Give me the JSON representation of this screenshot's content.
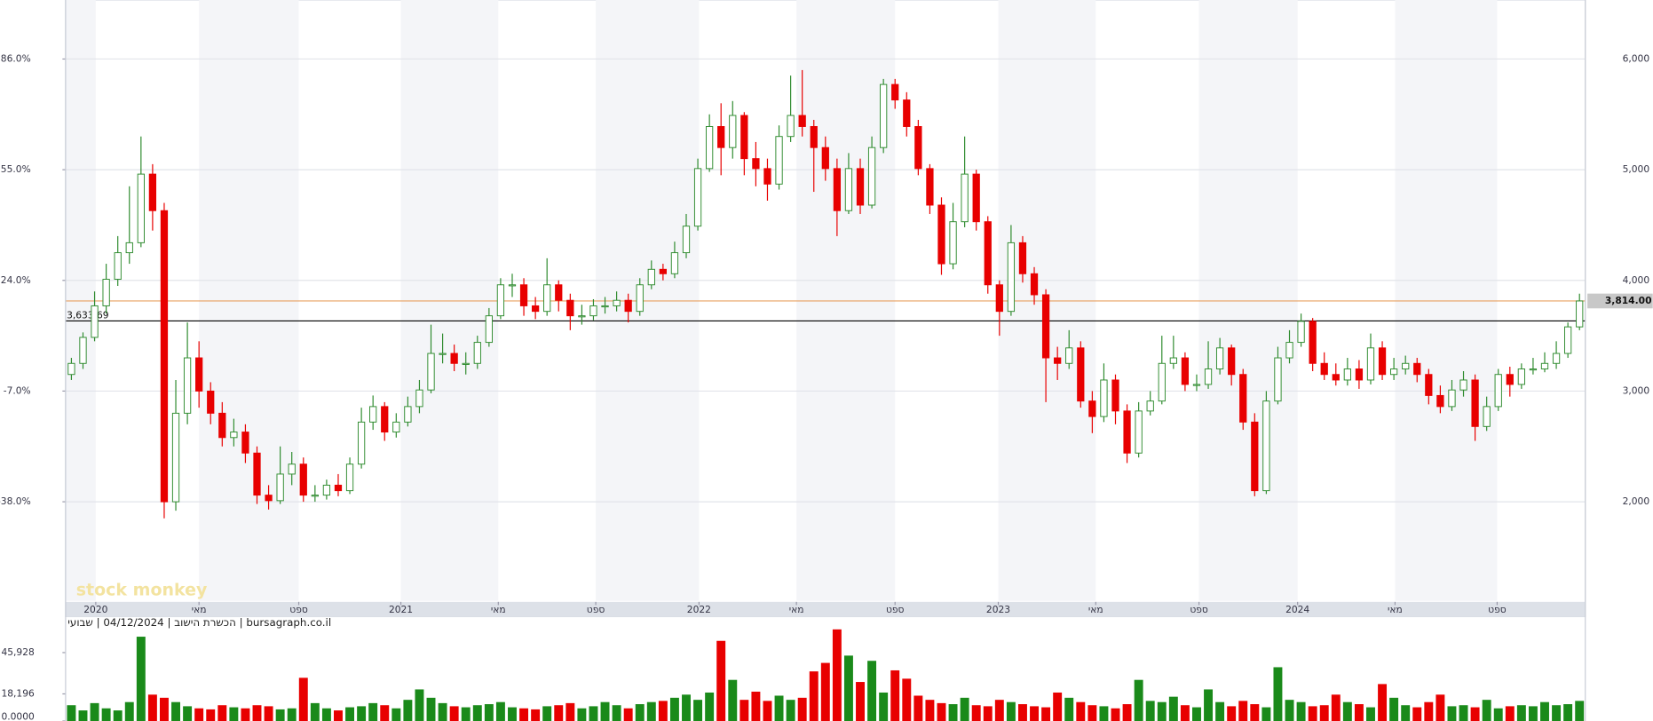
{
  "chart_data": [
    {
      "type": "candlestick",
      "watermark": "stock monkey",
      "up_color": "#2e8b2e",
      "down_color": "#e80000",
      "xlim": [
        -0.5,
        130.5
      ],
      "xticks": [
        {
          "value": 2.1,
          "label": "2020"
        },
        {
          "value": 11.0,
          "label": "מאי"
        },
        {
          "value": 19.6,
          "label": "ספט"
        },
        {
          "value": 28.4,
          "label": "2021"
        },
        {
          "value": 36.8,
          "label": "מאי"
        },
        {
          "value": 45.2,
          "label": "ספט"
        },
        {
          "value": 54.1,
          "label": "2022"
        },
        {
          "value": 62.5,
          "label": "מאי"
        },
        {
          "value": 71.0,
          "label": "ספט"
        },
        {
          "value": 79.9,
          "label": "2023"
        },
        {
          "value": 88.3,
          "label": "מאי"
        },
        {
          "value": 97.2,
          "label": "ספט"
        },
        {
          "value": 105.7,
          "label": "2024"
        },
        {
          "value": 114.1,
          "label": "מאי"
        },
        {
          "value": 122.9,
          "label": "ספט"
        }
      ],
      "ylim": [
        1105,
        6533
      ],
      "yticks": [
        {
          "value": 2000,
          "label": "2,000"
        },
        {
          "value": 3000,
          "label": "3,000"
        },
        {
          "value": 4000,
          "label": "4,000"
        },
        {
          "value": 5000,
          "label": "5,000"
        },
        {
          "value": 6000,
          "label": "6,000"
        }
      ],
      "y2lim": [
        -65.75,
        102.53
      ],
      "y2ticks": [
        {
          "value": -38,
          "label": "-38.0%"
        },
        {
          "value": -7,
          "label": "-7.0%"
        },
        {
          "value": 24,
          "label": "24.0%"
        },
        {
          "value": 55,
          "label": "55.0%"
        },
        {
          "value": 86,
          "label": "86.0%"
        }
      ],
      "grid": true,
      "reference_lines": [
        {
          "value": 3633.69,
          "label": "3,633.69",
          "color": "#000000",
          "label_position": "left"
        },
        {
          "value": 3814,
          "label": "3,814.00",
          "color": "#e8a060",
          "label_position": "right"
        }
      ],
      "opens": [
        3150,
        3250,
        3485,
        3770,
        4010,
        4250,
        4340,
        4960,
        4630,
        2000,
        2800,
        3300,
        3000,
        2800,
        2580,
        2630,
        2440,
        2060,
        2010,
        2250,
        2340,
        2060,
        2060,
        2150,
        2100,
        2340,
        2720,
        2860,
        2630,
        2720,
        2860,
        3010,
        3340,
        3340,
        3250,
        3250,
        3440,
        3680,
        3960,
        3960,
        3770,
        3720,
        3960,
        3820,
        3680,
        3680,
        3770,
        3770,
        3820,
        3720,
        3960,
        4100,
        4060,
        4250,
        4490,
        5010,
        5390,
        5200,
        5490,
        5100,
        5010,
        4870,
        5300,
        5490,
        5390,
        5200,
        5010,
        4630,
        5010,
        4680,
        5200,
        5770,
        5630,
        5390,
        5010,
        4680,
        4150,
        4530,
        4960,
        4530,
        3960,
        3720,
        4340,
        4060,
        3870,
        3300,
        3250,
        3390,
        2910,
        2770,
        3100,
        2820,
        2440,
        2820,
        2910,
        3250,
        3300,
        3060,
        3060,
        3200,
        3390,
        3150,
        2720,
        2100,
        2910,
        3300,
        3440,
        3630,
        3250,
        3150,
        3100,
        3200,
        3100,
        3390,
        3150,
        3200,
        3250,
        3150,
        2960,
        2860,
        3010,
        3100,
        2680,
        2860,
        3150,
        3060,
        3200,
        3200,
        3250,
        3340,
        3580
      ],
      "highs": [
        3300,
        3530,
        3900,
        4150,
        4400,
        4850,
        5300,
        5050,
        4700,
        3100,
        3620,
        3450,
        3080,
        2900,
        2750,
        2700,
        2500,
        2150,
        2500,
        2450,
        2400,
        2150,
        2200,
        2250,
        2400,
        2850,
        2960,
        2900,
        2800,
        2950,
        3100,
        3600,
        3520,
        3420,
        3350,
        3500,
        3750,
        4020,
        4060,
        4020,
        3850,
        4200,
        4000,
        3880,
        3780,
        3830,
        3850,
        3900,
        3880,
        4020,
        4180,
        4150,
        4350,
        4600,
        5100,
        5500,
        5600,
        5620,
        5520,
        5250,
        5100,
        5400,
        5850,
        5900,
        5450,
        5300,
        5100,
        5150,
        5100,
        5300,
        5820,
        5820,
        5700,
        5450,
        5050,
        4750,
        4700,
        5300,
        5000,
        4580,
        4000,
        4500,
        4400,
        4120,
        3920,
        3400,
        3550,
        3450,
        3000,
        3250,
        3150,
        2880,
        2900,
        3000,
        3500,
        3500,
        3350,
        3150,
        3450,
        3480,
        3420,
        3200,
        2800,
        3000,
        3400,
        3550,
        3700,
        3660,
        3350,
        3250,
        3300,
        3280,
        3520,
        3450,
        3300,
        3320,
        3300,
        3200,
        3050,
        3100,
        3180,
        3150,
        2950,
        3200,
        3220,
        3250,
        3300,
        3350,
        3450,
        3620,
        3880
      ],
      "lows": [
        3100,
        3200,
        3450,
        3700,
        3950,
        4150,
        4300,
        4450,
        1850,
        1920,
        2700,
        2850,
        2700,
        2500,
        2500,
        2350,
        1980,
        1930,
        1980,
        2150,
        2000,
        2000,
        2020,
        2050,
        2070,
        2300,
        2650,
        2550,
        2580,
        2680,
        2800,
        2980,
        3250,
        3180,
        3150,
        3200,
        3400,
        3650,
        3850,
        3680,
        3650,
        3680,
        3720,
        3550,
        3600,
        3640,
        3700,
        3720,
        3620,
        3680,
        3920,
        4000,
        4020,
        4200,
        4450,
        4980,
        4950,
        5100,
        4950,
        4850,
        4720,
        4820,
        5250,
        5300,
        4800,
        4900,
        4400,
        4600,
        4600,
        4650,
        5150,
        5550,
        5300,
        4950,
        4600,
        4050,
        4100,
        4480,
        4450,
        3880,
        3500,
        3680,
        3980,
        3780,
        2900,
        3100,
        3200,
        2850,
        2620,
        2720,
        2700,
        2350,
        2400,
        2780,
        2880,
        3200,
        3000,
        3000,
        3020,
        3150,
        3050,
        2650,
        2050,
        2070,
        2880,
        3250,
        3400,
        3180,
        3100,
        3050,
        3050,
        3020,
        3060,
        3100,
        3100,
        3150,
        3080,
        2880,
        2800,
        2820,
        2950,
        2550,
        2640,
        2820,
        2950,
        3020,
        3150,
        3170,
        3200,
        3300,
        3550
      ],
      "closes": [
        3250,
        3485,
        3770,
        4010,
        4250,
        4340,
        4960,
        4630,
        2000,
        2800,
        3300,
        3000,
        2800,
        2580,
        2630,
        2440,
        2060,
        2010,
        2250,
        2340,
        2060,
        2060,
        2150,
        2100,
        2340,
        2720,
        2860,
        2630,
        2720,
        2860,
        3010,
        3340,
        3340,
        3250,
        3250,
        3440,
        3680,
        3960,
        3960,
        3770,
        3720,
        3960,
        3820,
        3680,
        3680,
        3770,
        3770,
        3820,
        3720,
        3960,
        4100,
        4060,
        4250,
        4490,
        5010,
        5390,
        5200,
        5490,
        5100,
        5010,
        4870,
        5300,
        5490,
        5390,
        5200,
        5010,
        4630,
        5010,
        4680,
        5200,
        5770,
        5630,
        5390,
        5010,
        4680,
        4150,
        4530,
        4960,
        4530,
        3960,
        3720,
        4340,
        4060,
        3870,
        3300,
        3250,
        3390,
        2910,
        2770,
        3100,
        2820,
        2440,
        2820,
        2910,
        3250,
        3300,
        3060,
        3060,
        3200,
        3390,
        3150,
        2720,
        2100,
        2910,
        3300,
        3440,
        3630,
        3250,
        3150,
        3100,
        3200,
        3100,
        3390,
        3150,
        3200,
        3250,
        3150,
        2960,
        2860,
        3010,
        3100,
        2680,
        2860,
        3150,
        3060,
        3200,
        3200,
        3250,
        3340,
        3580,
        3814
      ]
    },
    {
      "type": "bar",
      "subtitle": "bursagraph.co.il | הכשרת הישוב | 04/12/2024 | שבועי",
      "up_color": "#1a8a1a",
      "down_color": "#e80000",
      "ylim": [
        0,
        69350
      ],
      "yticks": [
        {
          "value": 0,
          "label": "0.0000"
        },
        {
          "value": 18196,
          "label": "18,196"
        },
        {
          "value": 45928,
          "label": "45,928"
        }
      ],
      "values": [
        10600,
        7100,
        12000,
        8500,
        7100,
        12700,
        56600,
        17700,
        15600,
        12700,
        9900,
        8500,
        7800,
        10600,
        9200,
        8500,
        10600,
        9900,
        7800,
        8500,
        29000,
        12000,
        8500,
        7100,
        9200,
        9900,
        12000,
        10600,
        8500,
        14200,
        21200,
        15600,
        12000,
        9900,
        9200,
        10600,
        11300,
        12700,
        9200,
        8500,
        7800,
        9900,
        10600,
        12000,
        8500,
        9900,
        12700,
        10600,
        8500,
        11300,
        12700,
        13500,
        15600,
        17700,
        14200,
        19100,
        53800,
        27600,
        14200,
        19700,
        13500,
        17000,
        14200,
        15600,
        33300,
        39000,
        61500,
        43900,
        26200,
        40400,
        19100,
        34000,
        28400,
        17000,
        14200,
        12000,
        11300,
        15600,
        10600,
        9900,
        14200,
        12700,
        11300,
        9900,
        9200,
        19100,
        15600,
        12700,
        10600,
        9900,
        8500,
        11300,
        27600,
        13500,
        12700,
        16300,
        10600,
        9200,
        21200,
        12700,
        9900,
        13500,
        11300,
        9200,
        36100,
        14200,
        12700,
        9900,
        10600,
        17700,
        12700,
        11300,
        9200,
        24800,
        15600,
        10600,
        9200,
        12700,
        17700,
        9900,
        10600,
        9200,
        14200,
        8500,
        9900,
        10600,
        9900,
        12700,
        10600,
        11300,
        13500
      ]
    }
  ]
}
